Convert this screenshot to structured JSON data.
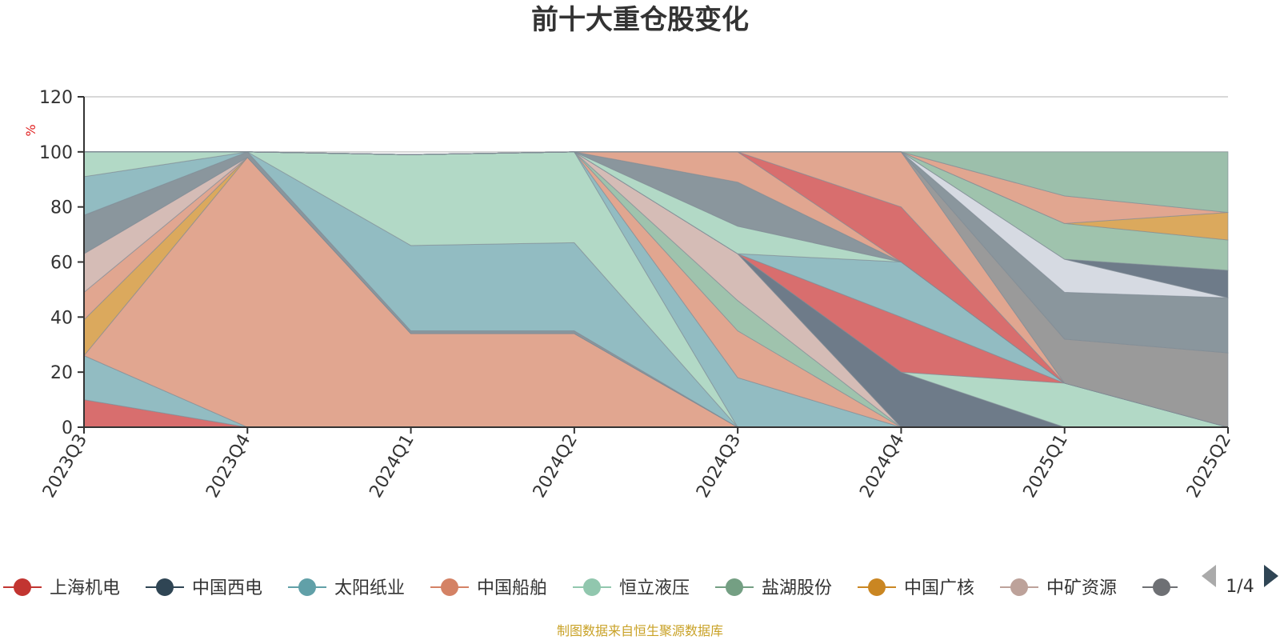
{
  "chart_data": {
    "type": "area",
    "title": "前十大重仓股变化",
    "ylabel": "%",
    "xlabel": "",
    "ylim": [
      0,
      120
    ],
    "yticks": [
      0,
      20,
      40,
      60,
      80,
      100,
      120
    ],
    "categories": [
      "2023Q3",
      "2023Q4",
      "2024Q1",
      "2024Q2",
      "2024Q3",
      "2024Q4",
      "2025Q1",
      "2025Q2"
    ],
    "grid": true,
    "stacked_percent": true,
    "series": [
      {
        "name": "上海机电",
        "color": "#d86e6e",
        "values": [
          10,
          0,
          0,
          0,
          0,
          0,
          0,
          0
        ]
      },
      {
        "name": "太阳纸业",
        "color": "#92bcc2",
        "values": [
          16,
          0,
          0,
          0,
          0,
          0,
          0,
          0
        ]
      },
      {
        "name": "中国船舶",
        "color": "#e1a690",
        "values": [
          0,
          98,
          34,
          34,
          0,
          0,
          0,
          0
        ]
      },
      {
        "name": "中国广核",
        "color": "#dba95d",
        "values": [
          13,
          0,
          0,
          0,
          0,
          0,
          0,
          0
        ]
      },
      {
        "name": "中国船舶",
        "color": "#e1a690",
        "values": [
          10,
          0,
          0,
          0,
          0,
          0,
          0,
          0
        ]
      },
      {
        "name": "中矿资源",
        "color": "#d5bcb6",
        "values": [
          14,
          0,
          0,
          0,
          0,
          0,
          0,
          0
        ]
      },
      {
        "name": "中国西电",
        "color": "#8a969d",
        "values": [
          14,
          2,
          1,
          1,
          0,
          0,
          0,
          0
        ]
      },
      {
        "name": "太阳纸业",
        "color": "#92bcc2",
        "values": [
          14,
          0,
          31,
          32,
          0,
          0,
          0,
          0
        ]
      },
      {
        "name": "恒立液压",
        "color": "#b2d9c6",
        "values": [
          9,
          0,
          33,
          33,
          0,
          0,
          0,
          0
        ]
      },
      {
        "name": "太阳纸业",
        "color": "#92bcc2",
        "values": [
          0,
          0,
          0,
          0,
          18,
          0,
          0,
          0
        ]
      },
      {
        "name": "中国船舶",
        "color": "#e1a690",
        "values": [
          0,
          0,
          0,
          0,
          17,
          0,
          0,
          0
        ]
      },
      {
        "name": "盐湖股份",
        "color": "#9fc3ad",
        "values": [
          0,
          0,
          0,
          0,
          11,
          0,
          0,
          0
        ]
      },
      {
        "name": "中矿资源",
        "color": "#d5bcb6",
        "values": [
          0,
          0,
          0,
          0,
          17,
          0,
          0,
          0
        ]
      },
      {
        "name": "太阳纸业",
        "color": "#92bcc2",
        "values": [
          0,
          0,
          0,
          0,
          0,
          0,
          0,
          0
        ]
      },
      {
        "name": "中国西电",
        "color": "#6e7b89",
        "values": [
          0,
          0,
          0,
          0,
          0,
          20,
          0,
          0
        ]
      },
      {
        "name": "恒立液压",
        "color": "#b2d9c6",
        "values": [
          0,
          0,
          0,
          0,
          0,
          0,
          16,
          0
        ]
      },
      {
        "name": "上海机电",
        "color": "#d86e6e",
        "values": [
          0,
          0,
          0,
          0,
          0,
          20,
          0,
          0
        ]
      },
      {
        "name": "太阳纸业",
        "color": "#92bcc2",
        "values": [
          0,
          0,
          0,
          0,
          0,
          20,
          0,
          0
        ]
      },
      {
        "name": "恒立液压",
        "color": "#b2d9c6",
        "values": [
          0,
          0,
          0,
          0,
          10,
          0,
          0,
          0
        ]
      },
      {
        "name": "中国西电",
        "color": "#8a969d",
        "values": [
          0,
          0,
          0,
          0,
          16,
          0,
          0,
          0
        ]
      },
      {
        "name": "中国船舶",
        "color": "#e1a690",
        "values": [
          0,
          0,
          0,
          0,
          11,
          0,
          0,
          0
        ]
      },
      {
        "name": "上海机电",
        "color": "#d86e6e",
        "values": [
          0,
          0,
          0,
          0,
          0,
          20,
          0,
          0
        ]
      },
      {
        "name": "中国船舶",
        "color": "#e1a690",
        "values": [
          0,
          0,
          0,
          0,
          0,
          20,
          0,
          0
        ]
      },
      {
        "name": "中矿资源",
        "color": "#9a9a9a",
        "values": [
          0,
          0,
          0,
          0,
          0,
          0,
          16,
          27
        ]
      },
      {
        "name": "中国西电",
        "color": "#8a969d",
        "values": [
          0,
          0,
          0,
          0,
          0,
          0,
          17,
          20
        ]
      },
      {
        "name": "太阳纸业",
        "color": "#d6dae2",
        "values": [
          0,
          0,
          0,
          0,
          0,
          0,
          12,
          0
        ]
      },
      {
        "name": "中国西电",
        "color": "#6e7b89",
        "values": [
          0,
          0,
          0,
          0,
          0,
          0,
          0,
          10
        ]
      },
      {
        "name": "盐湖股份",
        "color": "#9fc3ad",
        "values": [
          0,
          0,
          0,
          0,
          0,
          0,
          13,
          11
        ]
      },
      {
        "name": "中国广核",
        "color": "#dba95d",
        "values": [
          0,
          0,
          0,
          0,
          0,
          0,
          0,
          10
        ]
      },
      {
        "name": "中国船舶",
        "color": "#e1a690",
        "values": [
          0,
          0,
          0,
          0,
          0,
          0,
          10,
          0
        ]
      },
      {
        "name": "盐湖股份",
        "color": "#9cbfab",
        "values": [
          0,
          0,
          0,
          0,
          0,
          0,
          16,
          22
        ]
      }
    ]
  },
  "legend": {
    "items": [
      {
        "name": "上海机电",
        "color": "#c23531"
      },
      {
        "name": "中国西电",
        "color": "#2f4554"
      },
      {
        "name": "太阳纸业",
        "color": "#61a0a8"
      },
      {
        "name": "中国船舶",
        "color": "#d48265"
      },
      {
        "name": "恒立液压",
        "color": "#91c7ae"
      },
      {
        "name": "盐湖股份",
        "color": "#749f83"
      },
      {
        "name": "中国广核",
        "color": "#ca8622"
      },
      {
        "name": "中矿资源",
        "color": "#bda29a"
      },
      {
        "name": "",
        "color": "#6e7074"
      }
    ],
    "truncated_text": "",
    "page": "1/4"
  },
  "source": "制图数据来自恒生聚源数据库"
}
